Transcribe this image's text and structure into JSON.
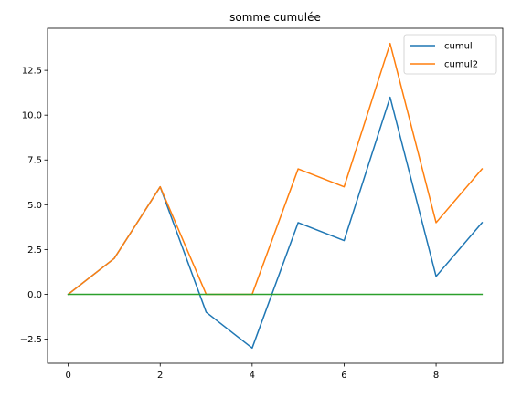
{
  "chart_data": {
    "type": "line",
    "title": "somme cumulée",
    "xlabel": "",
    "ylabel": "",
    "x": [
      0,
      1,
      2,
      3,
      4,
      5,
      6,
      7,
      8,
      9
    ],
    "xlim": [
      -0.45,
      9.45
    ],
    "ylim": [
      -3.85,
      14.85
    ],
    "xticks": [
      0,
      2,
      4,
      6,
      8
    ],
    "yticks": [
      -2.5,
      0.0,
      2.5,
      5.0,
      7.5,
      10.0,
      12.5
    ],
    "xtick_labels": [
      "0",
      "2",
      "4",
      "6",
      "8"
    ],
    "ytick_labels": [
      "−2.5",
      "0.0",
      "2.5",
      "5.0",
      "7.5",
      "10.0",
      "12.5"
    ],
    "grid": false,
    "legend_position": "top-right",
    "series": [
      {
        "name": "cumul",
        "color": "#1f77b4",
        "values": [
          0,
          2,
          6,
          -1,
          -3,
          4,
          3,
          11,
          1,
          4
        ]
      },
      {
        "name": "cumul2",
        "color": "#ff7f0e",
        "values": [
          0,
          2,
          6,
          0,
          0,
          7,
          6,
          14,
          4,
          7
        ]
      },
      {
        "color": "#2ca02c",
        "values": [
          0,
          0,
          0,
          0,
          0,
          0,
          0,
          0,
          0,
          0
        ]
      }
    ]
  }
}
